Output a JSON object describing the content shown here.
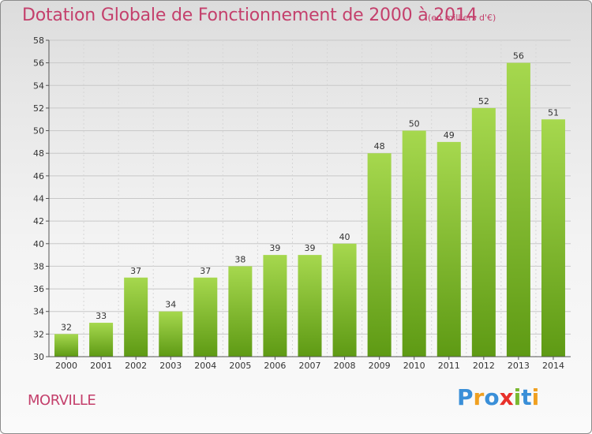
{
  "title": "Dotation Globale de Fonctionnement de 2000 à 2014",
  "subtitle": "(en milliers d'€)",
  "commune": "MORVILLE",
  "logo": {
    "letters": [
      "P",
      "r",
      "o",
      "x",
      "i",
      "t",
      "i"
    ],
    "colors": [
      "#3a8fd8",
      "#f0a020",
      "#3a8fd8",
      "#e8302a",
      "#7ab830",
      "#3a8fd8",
      "#f0a020"
    ]
  },
  "colors": {
    "title": "#c4406c",
    "bar_light": "#a6d84e",
    "bar_dark": "#5e9a14",
    "grid": "#c8c8c8"
  },
  "chart_data": {
    "type": "bar",
    "categories": [
      "2000",
      "2001",
      "2002",
      "2003",
      "2004",
      "2005",
      "2006",
      "2007",
      "2008",
      "2009",
      "2010",
      "2011",
      "2012",
      "2013",
      "2014"
    ],
    "values": [
      32,
      33,
      37,
      34,
      37,
      38,
      39,
      39,
      40,
      48,
      50,
      49,
      52,
      56,
      51
    ],
    "ylim": [
      30,
      58
    ],
    "yticks": [
      30,
      32,
      34,
      36,
      38,
      40,
      42,
      44,
      46,
      48,
      50,
      52,
      54,
      56,
      58
    ],
    "grid": true
  }
}
